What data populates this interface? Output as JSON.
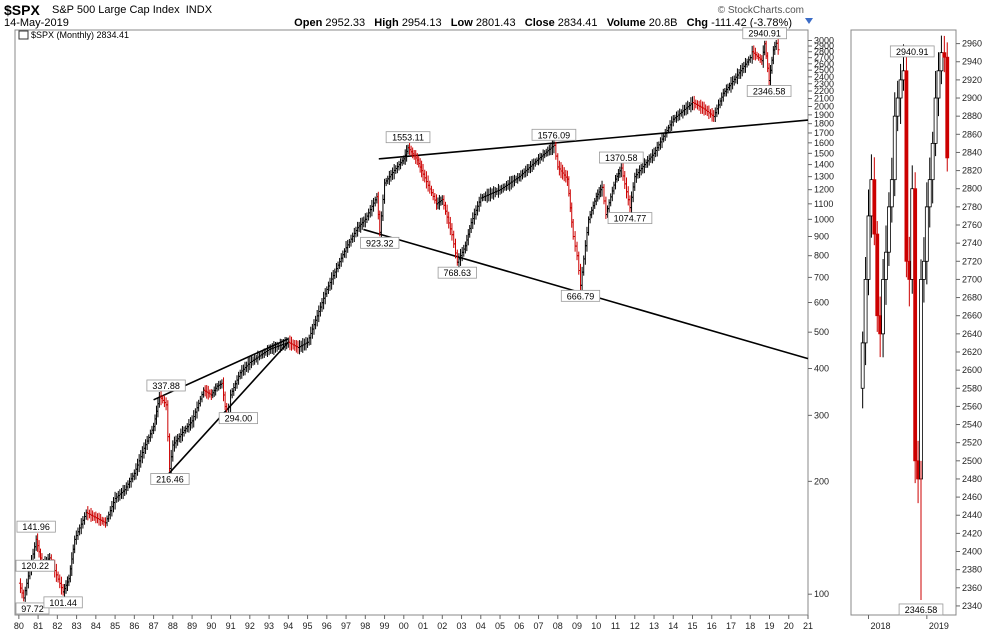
{
  "header": {
    "symbol": "$SPX",
    "name": "S&P 500 Large Cap Index",
    "exchange": "INDX",
    "date": "14-May-2019",
    "open_label": "Open",
    "open": "2952.33",
    "high_label": "High",
    "high": "2954.13",
    "low_label": "Low",
    "low": "2801.43",
    "close_label": "Close",
    "close": "2834.41",
    "volume_label": "Volume",
    "volume": "20.8B",
    "chg_label": "Chg",
    "chg": "-111.42 (-3.78%)",
    "brand": "© StockCharts.com",
    "legend": "$SPX (Monthly) 2834.41"
  },
  "colors": {
    "up": "#000000",
    "down": "#cc0000",
    "frame": "#888888",
    "trendline": "#000000",
    "arrow": "#3b6cc7"
  },
  "chart_data": [
    {
      "type": "line",
      "title": "$SPX (Monthly) 2834.41",
      "scale": "log",
      "xlabel": "",
      "ylabel": "",
      "xlim": [
        1979.8,
        2021.0
      ],
      "ylim": [
        88,
        3200
      ],
      "x_ticks": [
        "80",
        "81",
        "82",
        "83",
        "84",
        "85",
        "86",
        "87",
        "88",
        "89",
        "90",
        "91",
        "92",
        "93",
        "94",
        "95",
        "96",
        "97",
        "98",
        "99",
        "00",
        "01",
        "02",
        "03",
        "04",
        "05",
        "06",
        "07",
        "08",
        "09",
        "10",
        "11",
        "12",
        "13",
        "14",
        "15",
        "16",
        "17",
        "18",
        "19",
        "20",
        "21"
      ],
      "y_ticks": [
        100,
        200,
        300,
        400,
        500,
        600,
        700,
        800,
        900,
        1000,
        1100,
        1200,
        1300,
        1400,
        1500,
        1600,
        1700,
        1800,
        1900,
        2000,
        2100,
        2200,
        2300,
        2400,
        2500,
        2600,
        2700,
        2800,
        2900,
        3000
      ],
      "series": [
        {
          "x": [
            1980.0,
            1980.25,
            1980.9,
            1981.2,
            1981.6,
            1982.3,
            1982.6,
            1982.9,
            1983.5,
            1984.5,
            1985.0,
            1985.5,
            1986.0,
            1986.5,
            1987.0,
            1987.3,
            1987.65,
            1987.83,
            1988.0,
            1988.5,
            1989.0,
            1989.6,
            1990.0,
            1990.3,
            1990.55,
            1990.8,
            1991.0,
            1991.5,
            1992.0,
            1993.0,
            1994.0,
            1994.5,
            1995.0,
            1996.0,
            1997.0,
            1997.6,
            1998.0,
            1998.6,
            1998.75,
            1999.0,
            1999.5,
            2000.0,
            2000.22,
            2000.7,
            2001.0,
            2001.7,
            2002.0,
            2002.5,
            2002.78,
            2003.2,
            2003.5,
            2004.0,
            2005.0,
            2006.0,
            2007.0,
            2007.8,
            2008.0,
            2008.5,
            2008.8,
            2009.0,
            2009.18,
            2009.6,
            2010.0,
            2010.3,
            2010.5,
            2011.0,
            2011.3,
            2011.75,
            2012.0,
            2012.5,
            2013.0,
            2014.0,
            2015.0,
            2015.6,
            2016.1,
            2016.6,
            2017.0,
            2018.0,
            2018.1,
            2018.6,
            2018.75,
            2018.98,
            2019.2,
            2019.35,
            2019.45
          ],
          "values": [
            107,
            97.72,
            140,
            120.22,
            125,
            101.44,
            110,
            140,
            165,
            155,
            180,
            190,
            210,
            245,
            280,
            337.88,
            320,
            216.46,
            250,
            270,
            290,
            350,
            340,
            359,
            365,
            295,
            340,
            390,
            415,
            450,
            470,
            455,
            470,
            650,
            840,
            950,
            1000,
            1150,
            923.32,
            1250,
            1350,
            1450,
            1553.11,
            1440,
            1320,
            1100,
            1130,
            910,
            768.63,
            850,
            980,
            1140,
            1200,
            1300,
            1450,
            1576.09,
            1380,
            1280,
            900,
            800,
            666.79,
            1000,
            1150,
            1217,
            1030,
            1280,
            1370.58,
            1074.77,
            1300,
            1400,
            1500,
            1850,
            2050,
            1970,
            1880,
            2170,
            2300,
            2700,
            2800,
            2650,
            2940.91,
            2346.58,
            2830,
            2950,
            2834.41
          ]
        }
      ],
      "annotations": [
        "97.72",
        "120.22",
        "141.96",
        "101.44",
        "337.88",
        "216.46",
        "294.00",
        "923.32",
        "1553.11",
        "768.63",
        "1576.09",
        "666.79",
        "1370.58",
        "1074.77",
        "2940.91",
        "2346.58"
      ],
      "trendlines": [
        {
          "x": [
            1987.0,
            1994.0
          ],
          "values": [
            330,
            480
          ]
        },
        {
          "x": [
            1987.8,
            1994.0
          ],
          "values": [
            210,
            470
          ]
        },
        {
          "x": [
            1998.7,
            2021.0
          ],
          "values": [
            1450,
            1840
          ]
        },
        {
          "x": [
            1997.9,
            2021.0
          ],
          "values": [
            940,
            425
          ]
        }
      ]
    },
    {
      "type": "line",
      "scale": "linear",
      "xlim": [
        2017.7,
        2019.5
      ],
      "ylim": [
        2330,
        2975
      ],
      "x_ticks": [
        "2018",
        "2019"
      ],
      "y_ticks": [
        2340,
        2360,
        2380,
        2400,
        2420,
        2440,
        2460,
        2480,
        2500,
        2520,
        2540,
        2560,
        2580,
        2600,
        2620,
        2640,
        2660,
        2680,
        2700,
        2720,
        2740,
        2760,
        2780,
        2800,
        2820,
        2840,
        2860,
        2880,
        2900,
        2920,
        2940,
        2960
      ],
      "series": [
        {
          "x": [
            2017.85,
            2017.9,
            2017.95,
            2018.0,
            2018.05,
            2018.1,
            2018.15,
            2018.2,
            2018.25,
            2018.3,
            2018.35,
            2018.4,
            2018.45,
            2018.5,
            2018.55,
            2018.6,
            2018.65,
            2018.7,
            2018.75,
            2018.8,
            2018.85,
            2018.9,
            2018.95,
            2019.0,
            2019.05,
            2019.1,
            2019.15,
            2019.2,
            2019.25,
            2019.3,
            2019.35
          ],
          "values": [
            2580,
            2630,
            2700,
            2770,
            2810,
            2750,
            2660,
            2640,
            2700,
            2730,
            2780,
            2810,
            2880,
            2900,
            2920,
            2930,
            2720,
            2700,
            2800,
            2500,
            2480,
            2700,
            2720,
            2780,
            2810,
            2850,
            2900,
            2930,
            2950,
            2945,
            2834
          ]
        }
      ],
      "annotations": [
        "2940.91",
        "2346.58"
      ]
    }
  ]
}
